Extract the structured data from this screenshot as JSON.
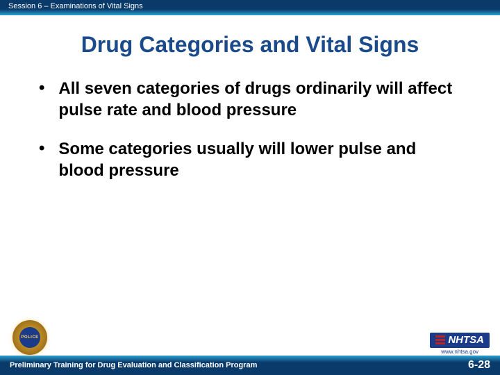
{
  "header": {
    "session_text": "Session 6 – Examinations of Vital Signs"
  },
  "title": "Drug Categories and Vital Signs",
  "bullets": [
    "All seven categories of drugs ordinarily will affect pulse rate and blood pressure",
    "Some categories usually will lower pulse and blood pressure"
  ],
  "logos": {
    "police_badge_label": "POLICE",
    "nhtsa_text": "NHTSA",
    "nhtsa_url": "www.nhtsa.gov"
  },
  "footer": {
    "program_text": "Preliminary Training for Drug Evaluation and Classification Program",
    "page_number": "6-28"
  },
  "colors": {
    "title_color": "#1a4a8a",
    "header_dark": "#0a3a6a",
    "header_accent": "#2aa0d0",
    "nhtsa_blue": "#1a3a8a",
    "nhtsa_red": "#c02020",
    "badge_gold": "#e0b030"
  }
}
